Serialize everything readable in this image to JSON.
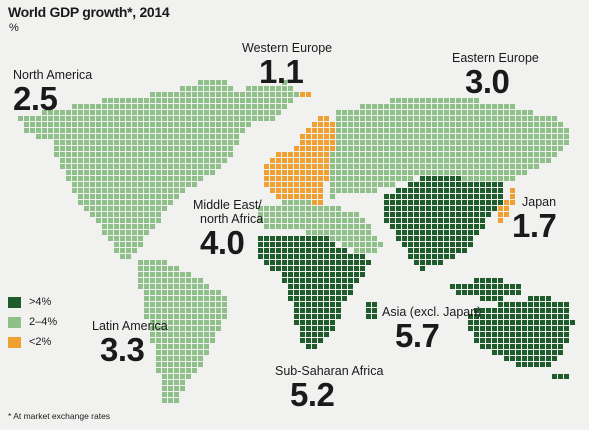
{
  "header": {
    "title": "World GDP growth*, 2014",
    "unit": "%"
  },
  "regions": {
    "north_america": {
      "name": "North America",
      "value": "2.5",
      "category": "2-4"
    },
    "western_europe": {
      "name": "Western Europe",
      "value": "1.1",
      "category": "<2"
    },
    "eastern_europe": {
      "name": "Eastern Europe",
      "value": "3.0",
      "category": "2-4"
    },
    "middle_east": {
      "name_line1": "Middle East/",
      "name_line2": "north Africa",
      "value": "4.0",
      "category": "2-4"
    },
    "japan": {
      "name": "Japan",
      "value": "1.7",
      "category": "<2"
    },
    "asia": {
      "name": "Asia (excl. Japan)",
      "value": "5.7",
      "category": ">4"
    },
    "latin_america": {
      "name": "Latin America",
      "value": "3.3",
      "category": "2-4"
    },
    "sub_saharan_africa": {
      "name": "Sub-Saharan Africa",
      "value": "5.2",
      "category": ">4"
    }
  },
  "legend": [
    {
      "label": ">4%",
      "color": "#1e5c2b"
    },
    {
      "label": "2–4%",
      "color": "#8fc08a"
    },
    {
      "label": "<2%",
      "color": "#f0a030"
    }
  ],
  "footnote": "* At market exchange rates"
}
